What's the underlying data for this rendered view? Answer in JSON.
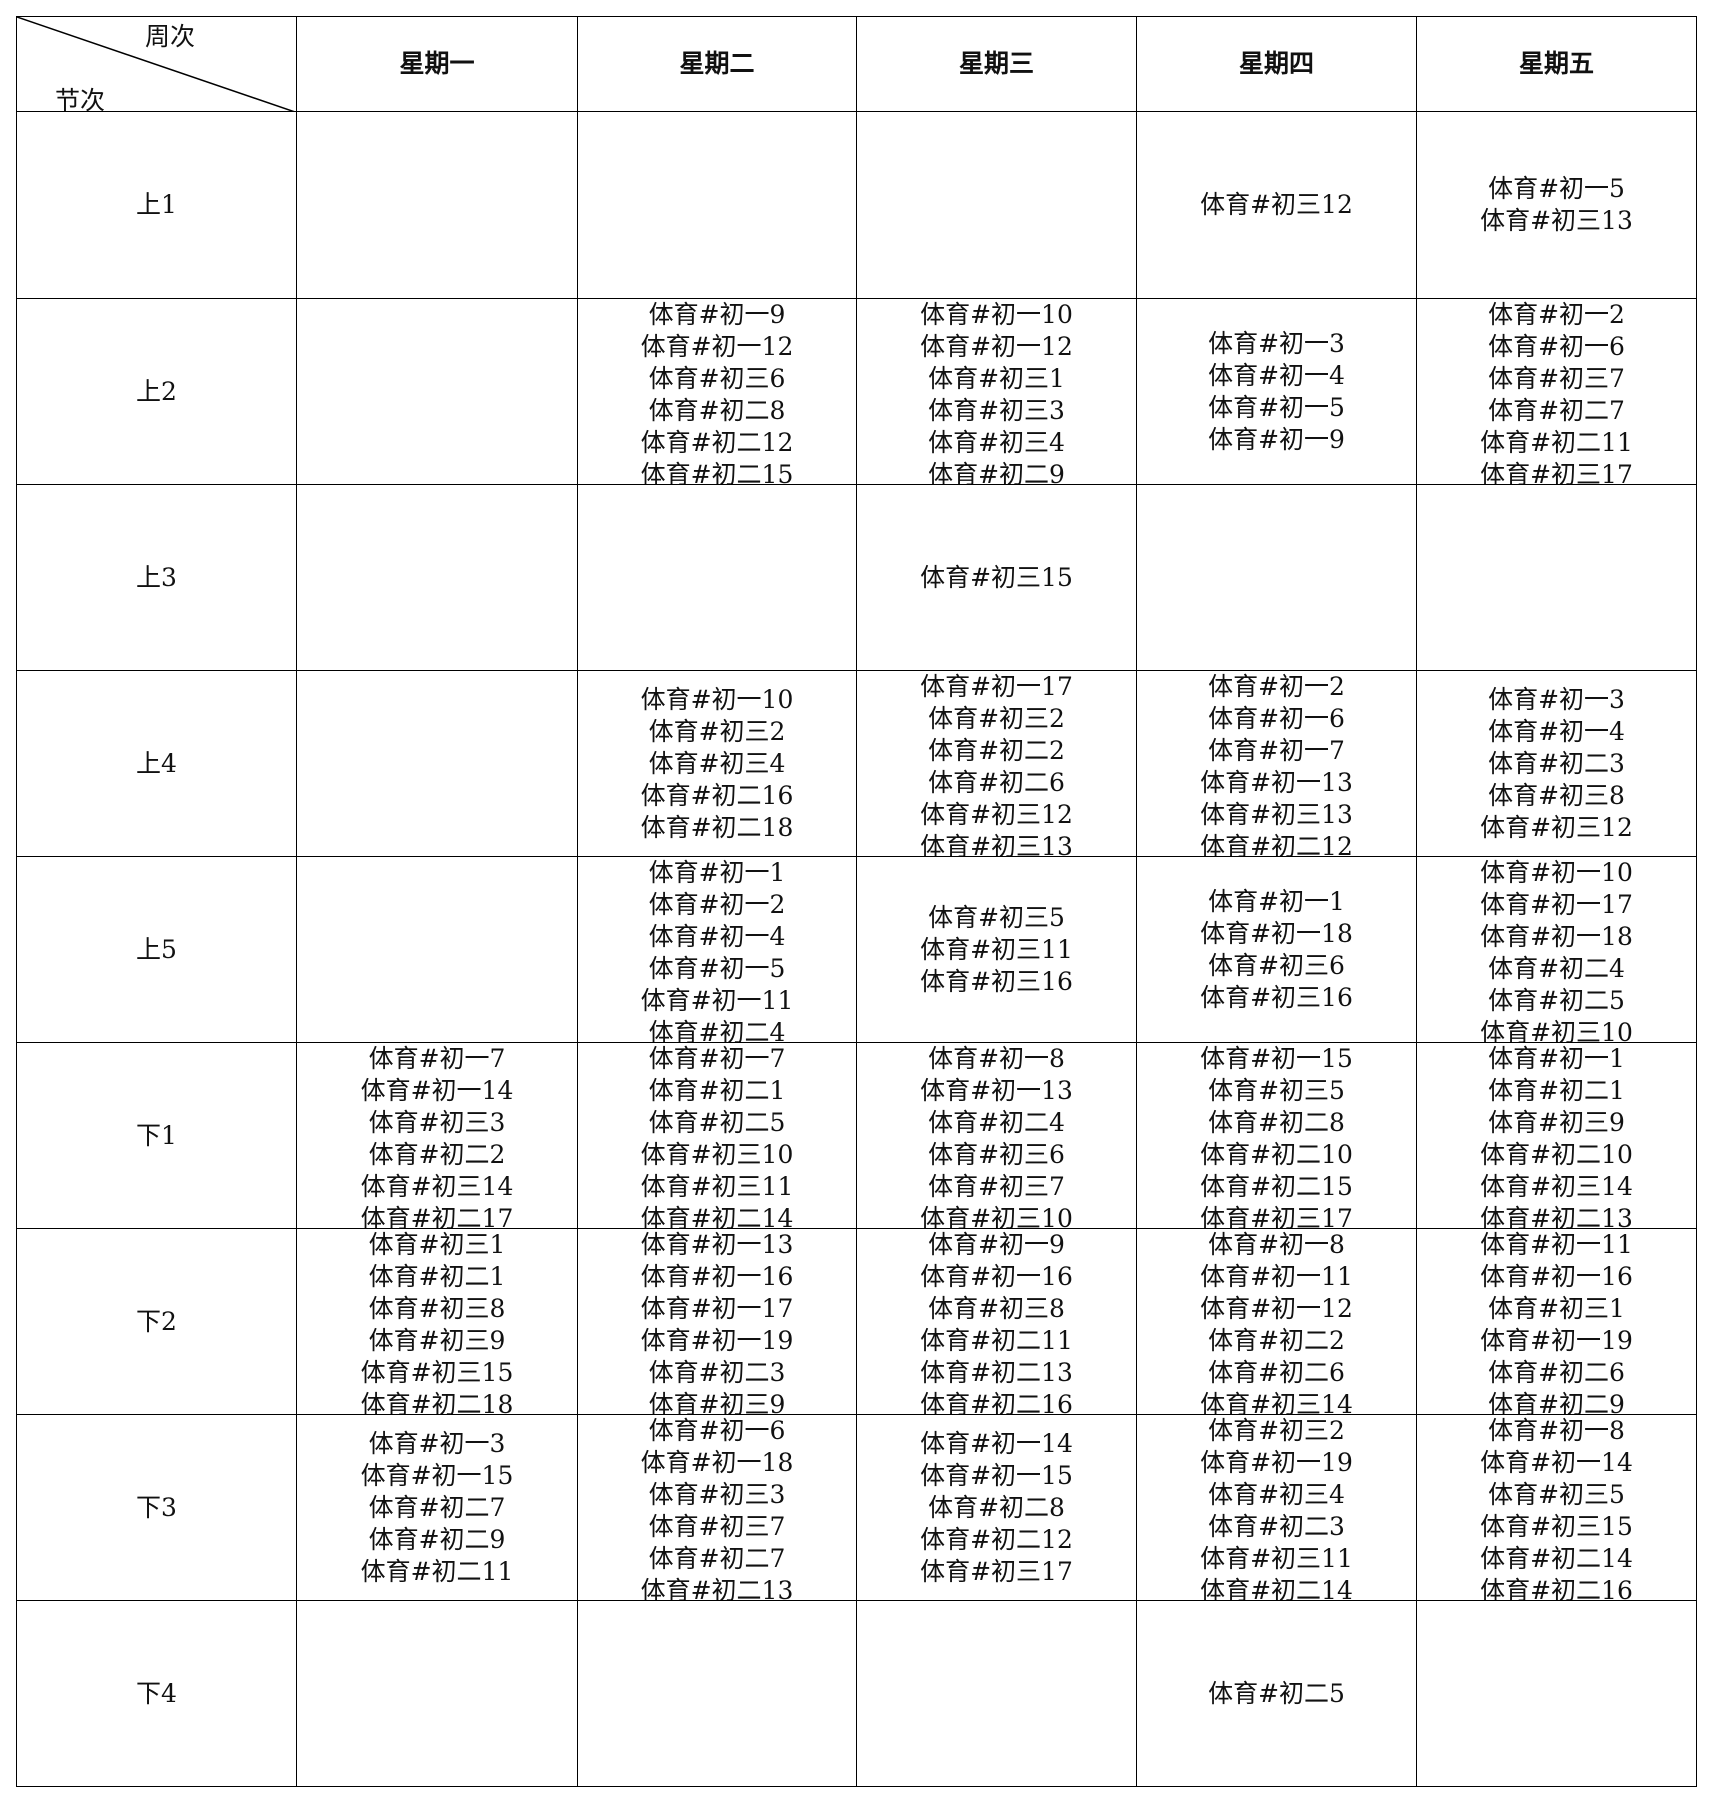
{
  "header": {
    "corner_top": "周次",
    "corner_bottom": "节次",
    "days": [
      "星期一",
      "星期二",
      "星期三",
      "星期四",
      "星期五"
    ]
  },
  "rows": [
    {
      "label": "上1",
      "cells": [
        [],
        [],
        [],
        [
          "体育#初三12"
        ],
        [
          "体育#初一5",
          "体育#初三13"
        ]
      ]
    },
    {
      "label": "上2",
      "cells": [
        [],
        [
          "体育#初一9",
          "体育#初一12",
          "体育#初三6",
          "体育#初二8",
          "体育#初二12",
          "体育#初二15"
        ],
        [
          "体育#初一10",
          "体育#初一12",
          "体育#初三1",
          "体育#初三3",
          "体育#初三4",
          "体育#初二9"
        ],
        [
          "体育#初一3",
          "体育#初一4",
          "体育#初一5",
          "体育#初一9"
        ],
        [
          "体育#初一2",
          "体育#初一6",
          "体育#初三7",
          "体育#初二7",
          "体育#初二11",
          "体育#初三17"
        ]
      ]
    },
    {
      "label": "上3",
      "cells": [
        [],
        [],
        [
          "体育#初三15"
        ],
        [],
        []
      ]
    },
    {
      "label": "上4",
      "cells": [
        [],
        [
          "体育#初一10",
          "体育#初三2",
          "体育#初三4",
          "体育#初二16",
          "体育#初二18"
        ],
        [
          "体育#初一17",
          "体育#初三2",
          "体育#初二2",
          "体育#初二6",
          "体育#初三12",
          "体育#初三13"
        ],
        [
          "体育#初一2",
          "体育#初一6",
          "体育#初一7",
          "体育#初一13",
          "体育#初三13",
          "体育#初二12"
        ],
        [
          "体育#初一3",
          "体育#初一4",
          "体育#初二3",
          "体育#初三8",
          "体育#初三12"
        ]
      ]
    },
    {
      "label": "上5",
      "cells": [
        [],
        [
          "体育#初一1",
          "体育#初一2",
          "体育#初一4",
          "体育#初一5",
          "体育#初一11",
          "体育#初二4"
        ],
        [
          "体育#初三5",
          "体育#初三11",
          "体育#初三16"
        ],
        [
          "体育#初一1",
          "体育#初一18",
          "体育#初三6",
          "体育#初三16"
        ],
        [
          "体育#初一10",
          "体育#初一17",
          "体育#初一18",
          "体育#初二4",
          "体育#初二5",
          "体育#初三10"
        ]
      ]
    },
    {
      "label": "下1",
      "cells": [
        [
          "体育#初一7",
          "体育#初一14",
          "体育#初三3",
          "体育#初二2",
          "体育#初三14",
          "体育#初二17"
        ],
        [
          "体育#初一7",
          "体育#初二1",
          "体育#初二5",
          "体育#初三10",
          "体育#初三11",
          "体育#初二14"
        ],
        [
          "体育#初一8",
          "体育#初一13",
          "体育#初二4",
          "体育#初三6",
          "体育#初三7",
          "体育#初三10"
        ],
        [
          "体育#初一15",
          "体育#初三5",
          "体育#初二8",
          "体育#初二10",
          "体育#初二15",
          "体育#初三17"
        ],
        [
          "体育#初一1",
          "体育#初二1",
          "体育#初三9",
          "体育#初二10",
          "体育#初三14",
          "体育#初二13"
        ]
      ]
    },
    {
      "label": "下2",
      "cells": [
        [
          "体育#初三1",
          "体育#初二1",
          "体育#初三8",
          "体育#初三9",
          "体育#初三15",
          "体育#初二18"
        ],
        [
          "体育#初一13",
          "体育#初一16",
          "体育#初一17",
          "体育#初一19",
          "体育#初二3",
          "体育#初三9"
        ],
        [
          "体育#初一9",
          "体育#初一16",
          "体育#初三8",
          "体育#初二11",
          "体育#初二13",
          "体育#初二16"
        ],
        [
          "体育#初一8",
          "体育#初一11",
          "体育#初一12",
          "体育#初二2",
          "体育#初二6",
          "体育#初三14"
        ],
        [
          "体育#初一11",
          "体育#初一16",
          "体育#初三1",
          "体育#初一19",
          "体育#初二6",
          "体育#初二9"
        ]
      ]
    },
    {
      "label": "下3",
      "cells": [
        [
          "体育#初一3",
          "体育#初一15",
          "体育#初二7",
          "体育#初二9",
          "体育#初二11"
        ],
        [
          "体育#初一6",
          "体育#初一18",
          "体育#初三3",
          "体育#初三7",
          "体育#初二7",
          "体育#初二13"
        ],
        [
          "体育#初一14",
          "体育#初一15",
          "体育#初二8",
          "体育#初二12",
          "体育#初三17"
        ],
        [
          "体育#初三2",
          "体育#初一19",
          "体育#初三4",
          "体育#初二3",
          "体育#初三11",
          "体育#初二14"
        ],
        [
          "体育#初一8",
          "体育#初一14",
          "体育#初三5",
          "体育#初三15",
          "体育#初二14",
          "体育#初二16"
        ]
      ]
    },
    {
      "label": "下4",
      "cells": [
        [],
        [],
        [],
        [
          "体育#初二5"
        ],
        []
      ]
    }
  ]
}
